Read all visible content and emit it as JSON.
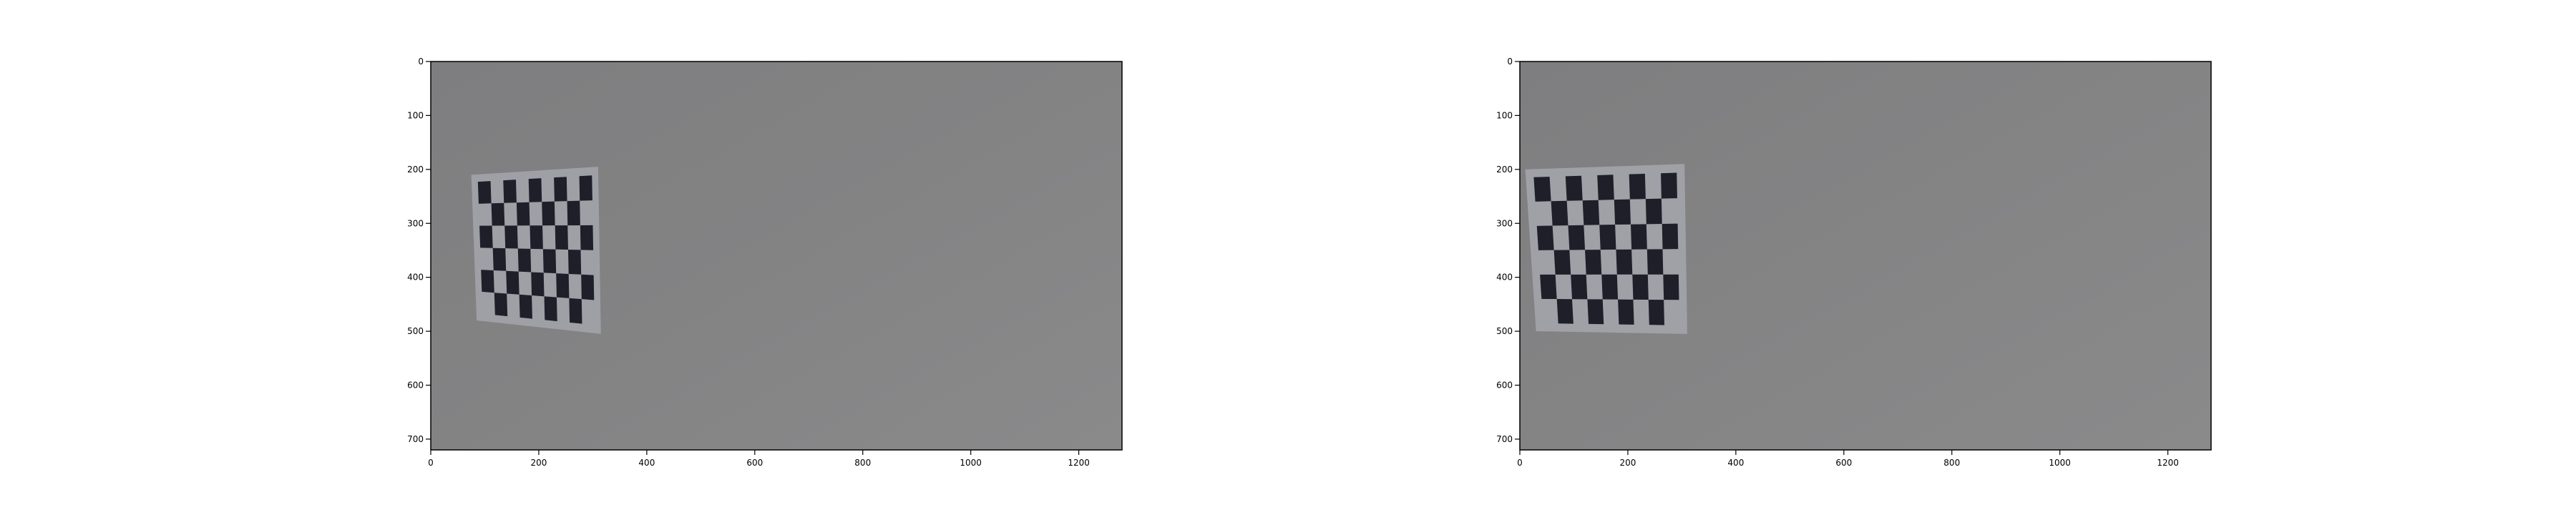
{
  "chart_data": [
    {
      "type": "image",
      "title": "",
      "xlabel": "",
      "ylabel": "",
      "xlim": [
        0,
        1280
      ],
      "ylim": [
        720,
        0
      ],
      "xticks": [
        0,
        200,
        400,
        600,
        800,
        1000,
        1200
      ],
      "yticks": [
        0,
        100,
        200,
        300,
        400,
        500,
        600,
        700
      ],
      "grid": false,
      "image": {
        "content": "checkerboard calibration target on gray wall",
        "background_color": "#838384",
        "board_color": "#9f9fa6",
        "square_color": "#1f1f2a",
        "board_corners": [
          [
            75,
            210
          ],
          [
            310,
            195
          ],
          [
            315,
            505
          ],
          [
            85,
            480
          ]
        ],
        "board_cols": 9,
        "board_rows": 6
      }
    },
    {
      "type": "image",
      "title": "",
      "xlabel": "",
      "ylabel": "",
      "xlim": [
        0,
        1280
      ],
      "ylim": [
        720,
        0
      ],
      "xticks": [
        0,
        200,
        400,
        600,
        800,
        1000,
        1200
      ],
      "yticks": [
        0,
        100,
        200,
        300,
        400,
        500,
        600,
        700
      ],
      "grid": false,
      "image": {
        "content": "undistorted checkerboard calibration target on gray wall",
        "background_color": "#848485",
        "board_color": "#a0a0a7",
        "square_color": "#1f1f2a",
        "board_corners": [
          [
            10,
            200
          ],
          [
            305,
            190
          ],
          [
            310,
            505
          ],
          [
            30,
            500
          ]
        ],
        "board_cols": 9,
        "board_rows": 6
      }
    }
  ]
}
